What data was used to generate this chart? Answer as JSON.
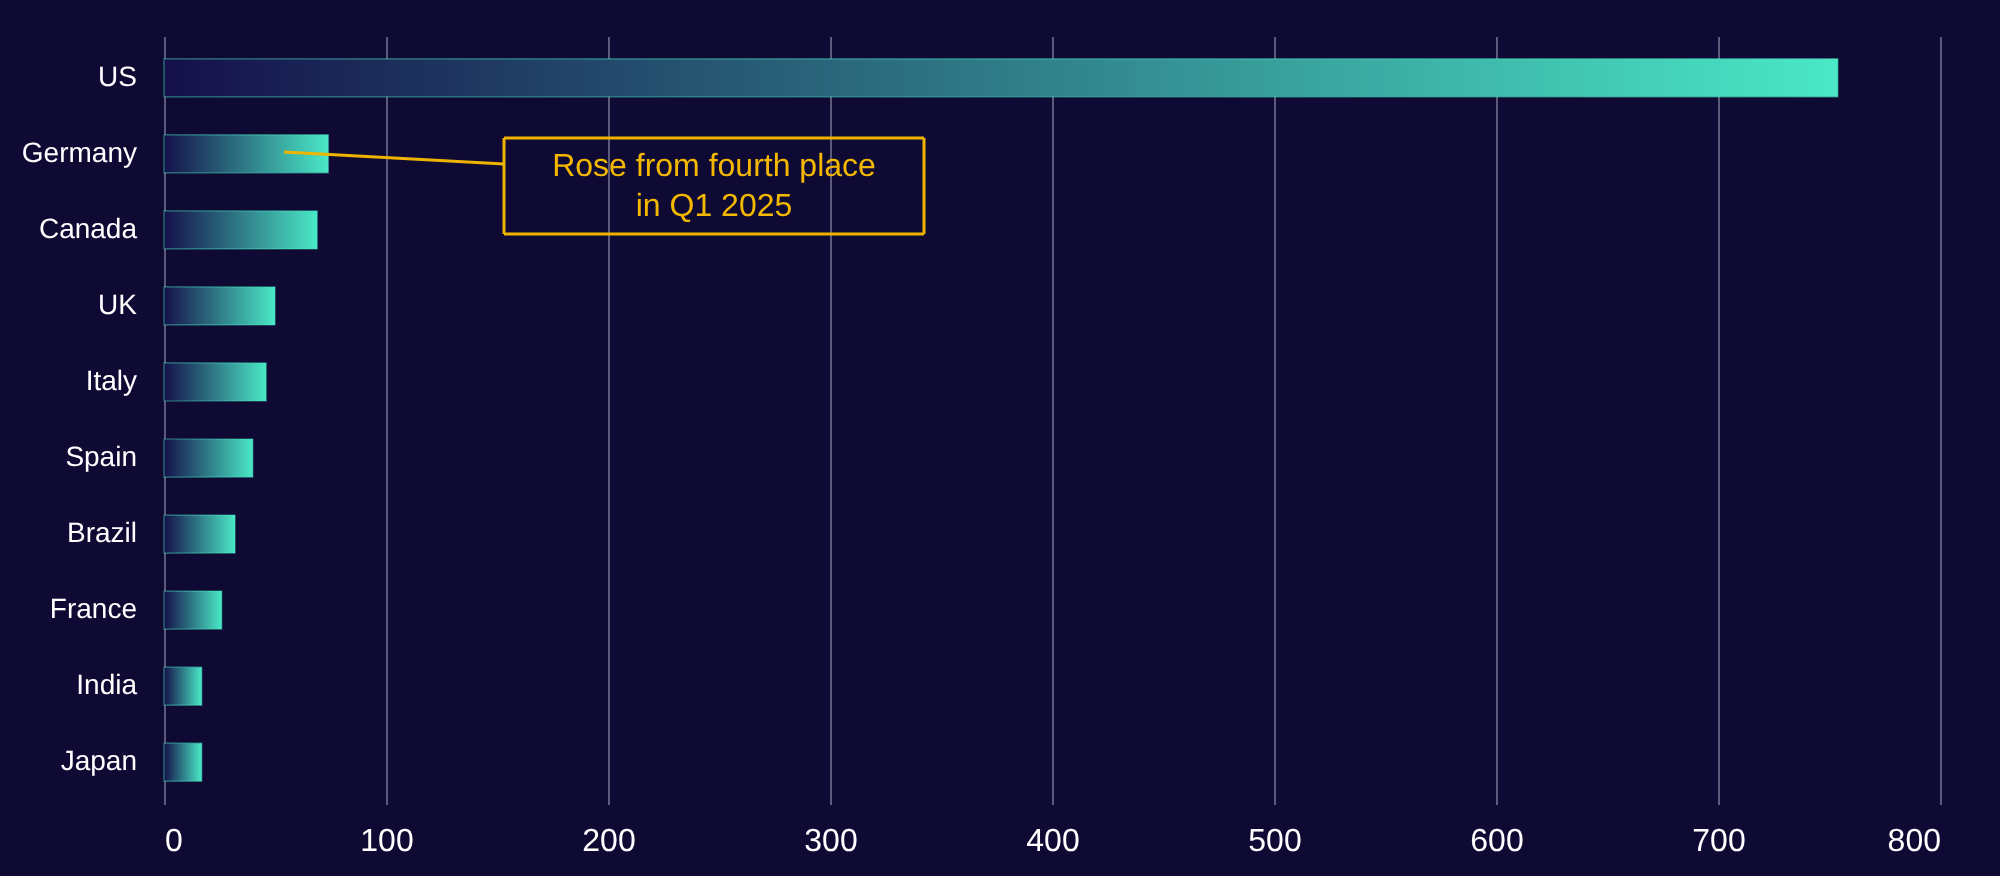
{
  "chart_data": {
    "type": "bar",
    "orientation": "horizontal",
    "categories": [
      "US",
      "Germany",
      "Canada",
      "UK",
      "Italy",
      "Spain",
      "Brazil",
      "France",
      "India",
      "Japan"
    ],
    "values": [
      754,
      74,
      69,
      50,
      46,
      40,
      32,
      26,
      17,
      17
    ],
    "color": "#4ae8c6",
    "xlim": [
      0,
      800
    ],
    "xticks": [
      0,
      100,
      200,
      300,
      400,
      500,
      600,
      700,
      800
    ],
    "grid": "x",
    "annotations": [
      "Rose from fourth place\nin Q1 2025"
    ]
  }
}
